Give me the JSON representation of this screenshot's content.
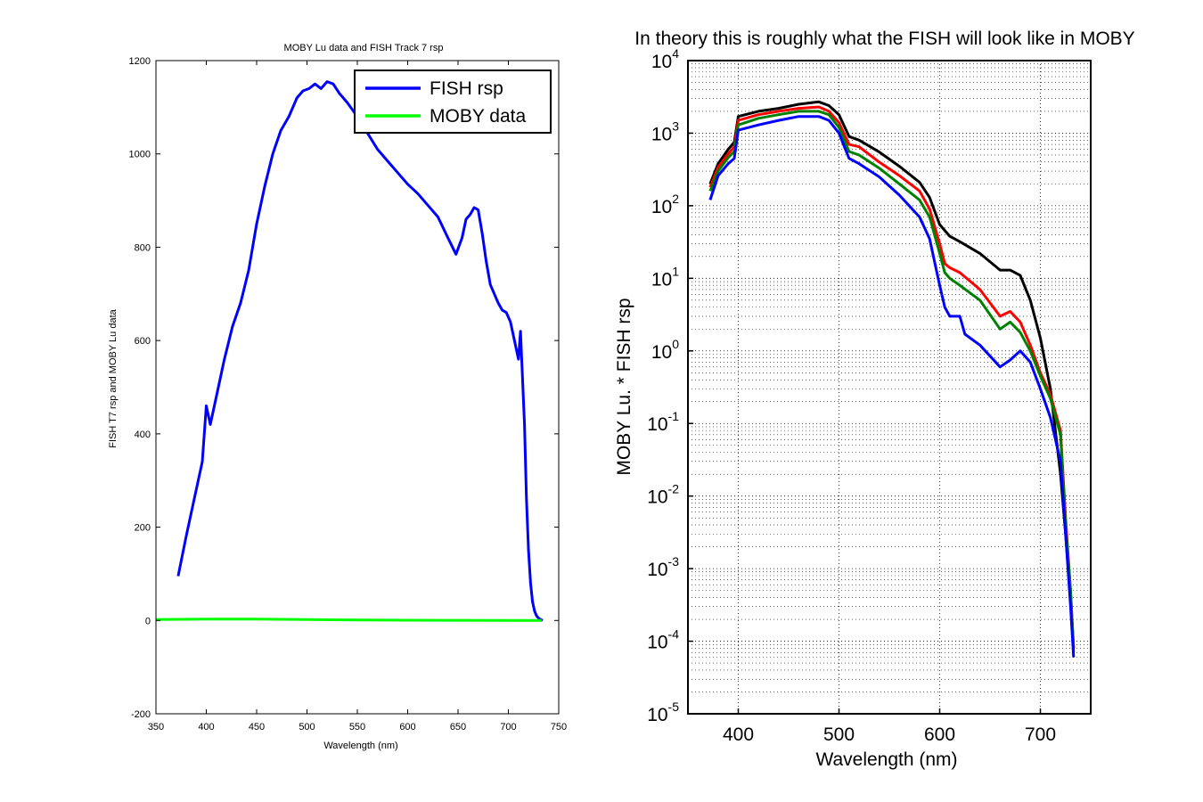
{
  "figure": {
    "background": "#ffffff"
  },
  "chart_data": [
    {
      "type": "line",
      "title": "MOBY Lu data and FISH Track 7 rsp",
      "xlabel": "Wavelength (nm)",
      "ylabel": "FISH T7 rsp and MOBY Lu data",
      "xlim": [
        350,
        750
      ],
      "ylim": [
        -200,
        1200
      ],
      "xticks": [
        350,
        400,
        450,
        500,
        550,
        600,
        650,
        700,
        750
      ],
      "yticks": [
        -200,
        0,
        200,
        400,
        600,
        800,
        1000,
        1200
      ],
      "xtick_labels": [
        "350",
        "400",
        "450",
        "500",
        "550",
        "600",
        "650",
        "700",
        "750"
      ],
      "ytick_labels": [
        "-200",
        "0",
        "200",
        "400",
        "600",
        "800",
        "1000",
        "1200"
      ],
      "grid": false,
      "legend_position": "top-right",
      "series": [
        {
          "name": "FISH rsp",
          "color": "#0000ff",
          "x": [
            372,
            380,
            388,
            396,
            400,
            404,
            410,
            418,
            426,
            434,
            442,
            450,
            458,
            466,
            474,
            482,
            490,
            496,
            502,
            508,
            514,
            520,
            526,
            532,
            540,
            550,
            560,
            570,
            580,
            590,
            600,
            610,
            620,
            630,
            640,
            648,
            654,
            658,
            662,
            666,
            670,
            674,
            678,
            682,
            686,
            690,
            694,
            698,
            702,
            706,
            710,
            712,
            716,
            718,
            720,
            722,
            724,
            726,
            728,
            730,
            732,
            734
          ],
          "y": [
            95,
            180,
            260,
            340,
            460,
            420,
            480,
            560,
            630,
            680,
            750,
            850,
            930,
            1000,
            1050,
            1080,
            1120,
            1135,
            1140,
            1150,
            1140,
            1155,
            1150,
            1130,
            1110,
            1080,
            1045,
            1010,
            985,
            960,
            935,
            915,
            890,
            865,
            820,
            785,
            820,
            860,
            870,
            885,
            880,
            830,
            770,
            720,
            700,
            680,
            665,
            660,
            640,
            600,
            560,
            620,
            420,
            260,
            150,
            80,
            40,
            20,
            10,
            5,
            2,
            0
          ]
        },
        {
          "name": "MOBY data",
          "color": "#00ff00",
          "x": [
            350,
            400,
            450,
            500,
            550,
            600,
            650,
            700,
            733
          ],
          "y": [
            2,
            3,
            3,
            2,
            1,
            0.5,
            0.3,
            0.1,
            0
          ]
        }
      ]
    },
    {
      "type": "line",
      "title": "In theory this is roughly what the FISH will look like in MOBY",
      "xlabel": "Wavelength (nm)",
      "ylabel": "MOBY Lu. * FISH rsp",
      "xlim": [
        350,
        750
      ],
      "ylim": [
        1e-05,
        10000
      ],
      "yscale": "log",
      "xticks": [
        400,
        500,
        600,
        700
      ],
      "xtick_labels": [
        "400",
        "500",
        "600",
        "700"
      ],
      "yticks": [
        -5,
        -4,
        -3,
        -2,
        -1,
        0,
        1,
        2,
        3,
        4
      ],
      "ytick_labels": [
        "10",
        "10",
        "10",
        "10",
        "10",
        "10",
        "10",
        "10",
        "10",
        "10"
      ],
      "ytick_exponents": [
        "-5",
        "-4",
        "-3",
        "-2",
        "-1",
        "0",
        "1",
        "2",
        "3",
        "4"
      ],
      "grid": true,
      "legend_position": "none",
      "series": [
        {
          "color": "#000000",
          "x": [
            372,
            380,
            390,
            396,
            400,
            420,
            440,
            460,
            480,
            490,
            500,
            510,
            520,
            540,
            560,
            580,
            590,
            600,
            610,
            620,
            640,
            660,
            670,
            680,
            690,
            700,
            710,
            720,
            725,
            730,
            733
          ],
          "y": [
            200,
            380,
            600,
            750,
            1700,
            2000,
            2200,
            2500,
            2700,
            2400,
            1800,
            900,
            800,
            550,
            350,
            210,
            130,
            55,
            38,
            32,
            22,
            13,
            13,
            11,
            5,
            1.5,
            0.3,
            0.02,
            0.003,
            0.0004,
            8e-05
          ]
        },
        {
          "color": "#ff0000",
          "x": [
            372,
            380,
            390,
            396,
            400,
            420,
            440,
            460,
            480,
            490,
            500,
            510,
            520,
            540,
            560,
            580,
            590,
            600,
            605,
            610,
            620,
            640,
            660,
            670,
            680,
            690,
            700,
            710,
            720,
            725,
            730,
            733
          ],
          "y": [
            180,
            340,
            520,
            650,
            1500,
            1800,
            2000,
            2200,
            2300,
            2000,
            1400,
            700,
            650,
            400,
            260,
            160,
            90,
            30,
            16,
            14,
            12,
            7,
            3,
            3.5,
            2.5,
            1.2,
            0.5,
            0.25,
            0.08,
            0.005,
            0.0005,
            8e-05
          ]
        },
        {
          "color": "#008000",
          "x": [
            372,
            380,
            390,
            396,
            400,
            420,
            440,
            460,
            480,
            490,
            500,
            510,
            520,
            540,
            560,
            580,
            590,
            600,
            605,
            610,
            620,
            640,
            660,
            670,
            680,
            690,
            700,
            710,
            720,
            725,
            730,
            733
          ],
          "y": [
            160,
            300,
            460,
            560,
            1300,
            1600,
            1800,
            2000,
            2000,
            1800,
            1200,
            560,
            500,
            330,
            200,
            120,
            70,
            22,
            12,
            10,
            8,
            5,
            2,
            2.5,
            1.8,
            1,
            0.45,
            0.22,
            0.07,
            0.004,
            0.0005,
            7e-05
          ]
        },
        {
          "color": "#0000ff",
          "x": [
            372,
            380,
            390,
            396,
            400,
            420,
            440,
            460,
            480,
            490,
            500,
            510,
            520,
            540,
            560,
            580,
            590,
            600,
            605,
            610,
            620,
            625,
            640,
            660,
            670,
            680,
            690,
            700,
            710,
            720,
            725,
            730,
            733
          ],
          "y": [
            120,
            260,
            380,
            450,
            1100,
            1300,
            1500,
            1700,
            1700,
            1500,
            1000,
            450,
            380,
            250,
            140,
            70,
            35,
            8,
            4,
            3,
            3,
            1.7,
            1.2,
            0.6,
            0.75,
            1,
            0.7,
            0.3,
            0.12,
            0.03,
            0.003,
            0.0003,
            6e-05
          ]
        }
      ]
    }
  ]
}
